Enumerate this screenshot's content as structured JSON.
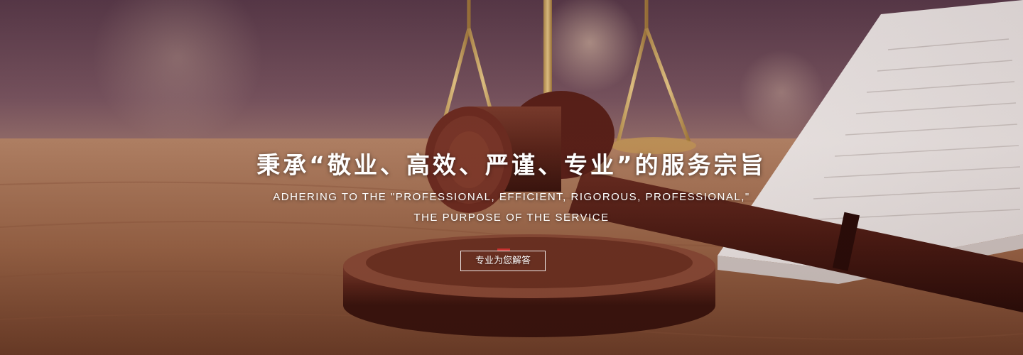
{
  "banner": {
    "headline": "秉承“敬业、高效、严谨、专业”的服务宗旨",
    "subline_1": "ADHERING TO THE \"PROFESSIONAL, EFFICIENT, RIGOROUS, PROFESSIONAL,\"",
    "subline_2": "THE PURPOSE OF THE SERVICE",
    "cta_label": "专业为您解答",
    "accent_color": "#c8312f"
  },
  "background": {
    "subject": "judge-gavel-scales-book-image"
  }
}
